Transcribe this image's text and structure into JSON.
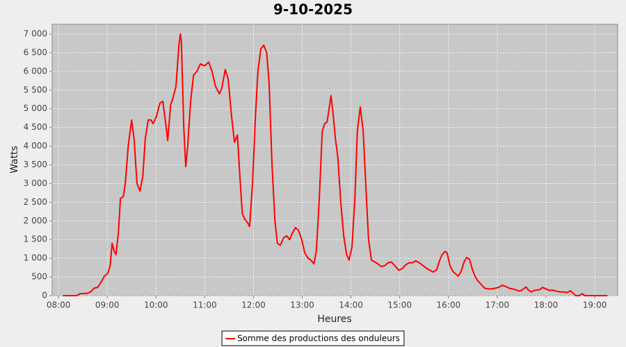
{
  "chart_data": {
    "type": "line",
    "title": "9-10-2025",
    "x_label": "Heures",
    "y_label": "Watts",
    "x": [
      8.09,
      8.37,
      8.44,
      8.58,
      8.66,
      8.73,
      8.8,
      8.87,
      8.94,
      9.01,
      9.06,
      9.1,
      9.14,
      9.18,
      9.23,
      9.27,
      9.33,
      9.37,
      9.43,
      9.5,
      9.55,
      9.61,
      9.67,
      9.73,
      9.78,
      9.84,
      9.9,
      9.94,
      10.01,
      10.08,
      10.14,
      10.2,
      10.24,
      10.3,
      10.35,
      10.41,
      10.47,
      10.5,
      10.52,
      10.57,
      10.61,
      10.65,
      10.71,
      10.77,
      10.84,
      10.91,
      11.0,
      11.08,
      11.15,
      11.22,
      11.3,
      11.35,
      11.42,
      11.48,
      11.55,
      11.61,
      11.67,
      11.72,
      11.77,
      11.82,
      11.88,
      11.92,
      11.98,
      12.04,
      12.09,
      12.15,
      12.21,
      12.27,
      12.32,
      12.38,
      12.44,
      12.49,
      12.55,
      12.62,
      12.68,
      12.74,
      12.79,
      12.86,
      12.92,
      12.99,
      13.05,
      13.12,
      13.18,
      13.24,
      13.29,
      13.35,
      13.41,
      13.46,
      13.51,
      13.59,
      13.63,
      13.68,
      13.73,
      13.79,
      13.85,
      13.91,
      13.96,
      14.02,
      14.08,
      14.13,
      14.19,
      14.25,
      14.31,
      14.36,
      14.42,
      14.49,
      14.55,
      14.62,
      14.69,
      14.76,
      14.83,
      14.9,
      14.98,
      15.05,
      15.12,
      15.19,
      15.26,
      15.33,
      15.4,
      15.48,
      15.55,
      15.62,
      15.69,
      15.76,
      15.82,
      15.87,
      15.93,
      15.97,
      16.03,
      16.09,
      16.15,
      16.2,
      16.26,
      16.32,
      16.37,
      16.43,
      16.49,
      16.55,
      16.6,
      16.67,
      16.74,
      16.82,
      16.89,
      16.96,
      17.03,
      17.1,
      17.17,
      17.24,
      17.32,
      17.39,
      17.46,
      17.53,
      17.59,
      17.64,
      17.7,
      17.76,
      17.81,
      17.87,
      17.93,
      18.0,
      18.07,
      18.14,
      18.21,
      18.29,
      18.36,
      18.43,
      18.5,
      18.56,
      18.61,
      18.68,
      18.74,
      18.8,
      18.93,
      19.07,
      19.26
    ],
    "series": [
      {
        "name": "Somme des productions des onduleurs",
        "color": "#ff0000",
        "values": [
          0,
          0,
          50,
          60,
          100,
          200,
          220,
          350,
          520,
          600,
          800,
          1400,
          1200,
          1100,
          1700,
          2600,
          2650,
          3000,
          4000,
          4700,
          4200,
          3000,
          2800,
          3200,
          4200,
          4700,
          4700,
          4600,
          4800,
          5150,
          5200,
          4600,
          4150,
          5100,
          5300,
          5600,
          6700,
          7000,
          6800,
          4500,
          3450,
          4000,
          5200,
          5900,
          6000,
          6200,
          6150,
          6250,
          6000,
          5600,
          5400,
          5550,
          6050,
          5800,
          4800,
          4100,
          4300,
          3200,
          2200,
          2050,
          1950,
          1850,
          3000,
          4800,
          6000,
          6600,
          6700,
          6500,
          5700,
          3500,
          2000,
          1400,
          1350,
          1550,
          1600,
          1500,
          1650,
          1820,
          1750,
          1500,
          1150,
          1000,
          950,
          850,
          1200,
          2600,
          4400,
          4600,
          4650,
          5350,
          4900,
          4200,
          3700,
          2500,
          1600,
          1100,
          950,
          1300,
          2600,
          4400,
          5050,
          4400,
          2800,
          1500,
          950,
          900,
          850,
          780,
          800,
          880,
          900,
          800,
          680,
          720,
          820,
          880,
          880,
          930,
          880,
          800,
          730,
          680,
          630,
          700,
          950,
          1100,
          1180,
          1150,
          800,
          650,
          580,
          520,
          650,
          900,
          1020,
          980,
          700,
          500,
          400,
          300,
          200,
          180,
          180,
          200,
          220,
          280,
          250,
          200,
          180,
          150,
          120,
          170,
          230,
          150,
          100,
          140,
          150,
          160,
          220,
          180,
          140,
          150,
          120,
          100,
          100,
          80,
          130,
          60,
          0,
          0,
          50,
          0,
          0,
          0,
          0
        ]
      }
    ],
    "xlim": [
      7.87,
      19.47
    ],
    "ylim": [
      0,
      7260
    ],
    "xticks": [
      {
        "value": 8,
        "label": "08:00"
      },
      {
        "value": 9,
        "label": "09:00"
      },
      {
        "value": 10,
        "label": "10:00"
      },
      {
        "value": 11,
        "label": "11:00"
      },
      {
        "value": 12,
        "label": "12:00"
      },
      {
        "value": 13,
        "label": "13:00"
      },
      {
        "value": 14,
        "label": "14:00"
      },
      {
        "value": 15,
        "label": "15:00"
      },
      {
        "value": 16,
        "label": "16:00"
      },
      {
        "value": 17,
        "label": "17:00"
      },
      {
        "value": 18,
        "label": "18:00"
      },
      {
        "value": 19,
        "label": "19:00"
      }
    ],
    "yticks": [
      0,
      500,
      {
        "value": 1000,
        "label": "1 000"
      },
      {
        "value": 1500,
        "label": "1 500"
      },
      {
        "value": 2000,
        "label": "2 000"
      },
      {
        "value": 2500,
        "label": "2 500"
      },
      {
        "value": 3000,
        "label": "3 000"
      },
      {
        "value": 3500,
        "label": "3 500"
      },
      {
        "value": 4000,
        "label": "4 000"
      },
      {
        "value": 4500,
        "label": "4 500"
      },
      {
        "value": 5000,
        "label": "5 000"
      },
      {
        "value": 5500,
        "label": "5 500"
      },
      {
        "value": 6000,
        "label": "6 000"
      },
      {
        "value": 6500,
        "label": "6 500"
      },
      {
        "value": 7000,
        "label": "7 000"
      }
    ],
    "grid": true,
    "legend": "bottom"
  }
}
